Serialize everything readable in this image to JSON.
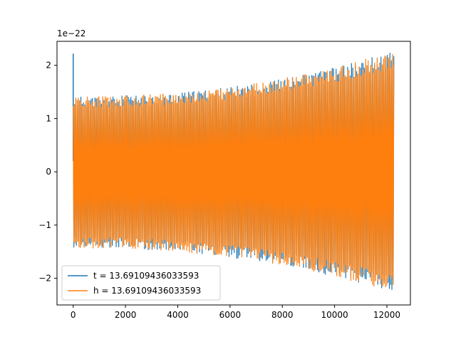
{
  "chart_data": {
    "type": "line",
    "title": "",
    "xlabel": "",
    "ylabel": "",
    "y_offset_text": "1e−22",
    "xlim": [
      -620,
      12900
    ],
    "ylim": [
      -2.5,
      2.45
    ],
    "x_ticks": [
      0,
      2000,
      4000,
      6000,
      8000,
      10000,
      12000
    ],
    "x_tick_labels": [
      "0",
      "2000",
      "4000",
      "6000",
      "8000",
      "10000",
      "12000"
    ],
    "y_ticks": [
      -2,
      -1,
      0,
      1,
      2
    ],
    "y_tick_labels": [
      "−2",
      "−1",
      "0",
      "1",
      "2"
    ],
    "grid": false,
    "legend_position": "lower-left",
    "x_end": 12288,
    "series": [
      {
        "name": "t = 13.69109436033593",
        "color": "#1f77b4",
        "spike": {
          "x": 0,
          "y_max": 2.22,
          "y_min": 0.2
        },
        "envelope_upper": {
          "start": 1.42,
          "end": 2.28
        },
        "envelope_lower": {
          "start": -1.44,
          "end": -2.28
        }
      },
      {
        "name": "h = 13.69109436033593",
        "color": "#ff7f0e",
        "envelope_upper": {
          "start": 1.42,
          "end": 2.28
        },
        "envelope_lower": {
          "start": -1.44,
          "end": -2.28
        }
      }
    ]
  }
}
